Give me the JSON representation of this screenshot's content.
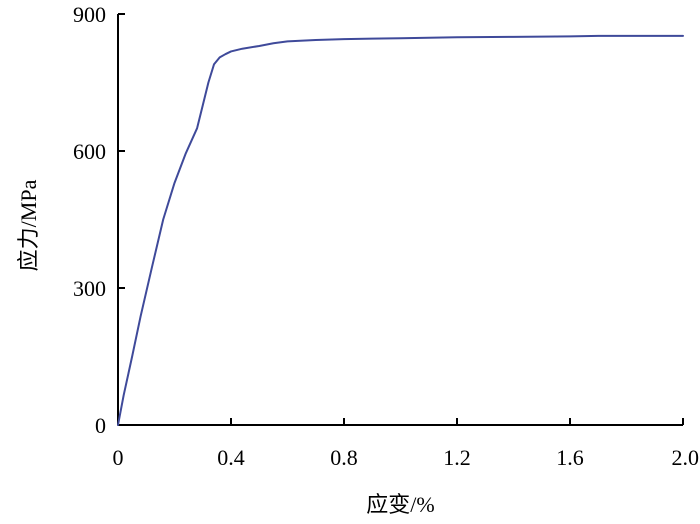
{
  "chart_data": {
    "type": "line",
    "title": "",
    "xlabel": "应变/%",
    "ylabel": "应力/MPa",
    "xlim": [
      0,
      2.0
    ],
    "ylim": [
      0,
      900
    ],
    "x_ticks": [
      "0",
      "0.4",
      "0.8",
      "1.2",
      "1.6",
      "2.0"
    ],
    "y_ticks": [
      "0",
      "300",
      "600",
      "900"
    ],
    "grid": false,
    "legend": "none",
    "line_color": "#3f4a9a",
    "series": [
      {
        "x": [
          0,
          0.02,
          0.05,
          0.08,
          0.12,
          0.16,
          0.2,
          0.24,
          0.28,
          0.3,
          0.32,
          0.34,
          0.36,
          0.38,
          0.4,
          0.44,
          0.5,
          0.55,
          0.6,
          0.7,
          0.8,
          0.9,
          1.0,
          1.1,
          1.2,
          1.4,
          1.6,
          1.7,
          1.8,
          2.0
        ],
        "y": [
          0,
          65,
          150,
          238,
          345,
          450,
          530,
          595,
          650,
          700,
          750,
          790,
          805,
          812,
          818,
          824,
          830,
          836,
          840,
          843,
          845,
          846,
          847,
          848,
          849,
          850,
          851,
          852,
          852,
          852
        ]
      }
    ]
  }
}
